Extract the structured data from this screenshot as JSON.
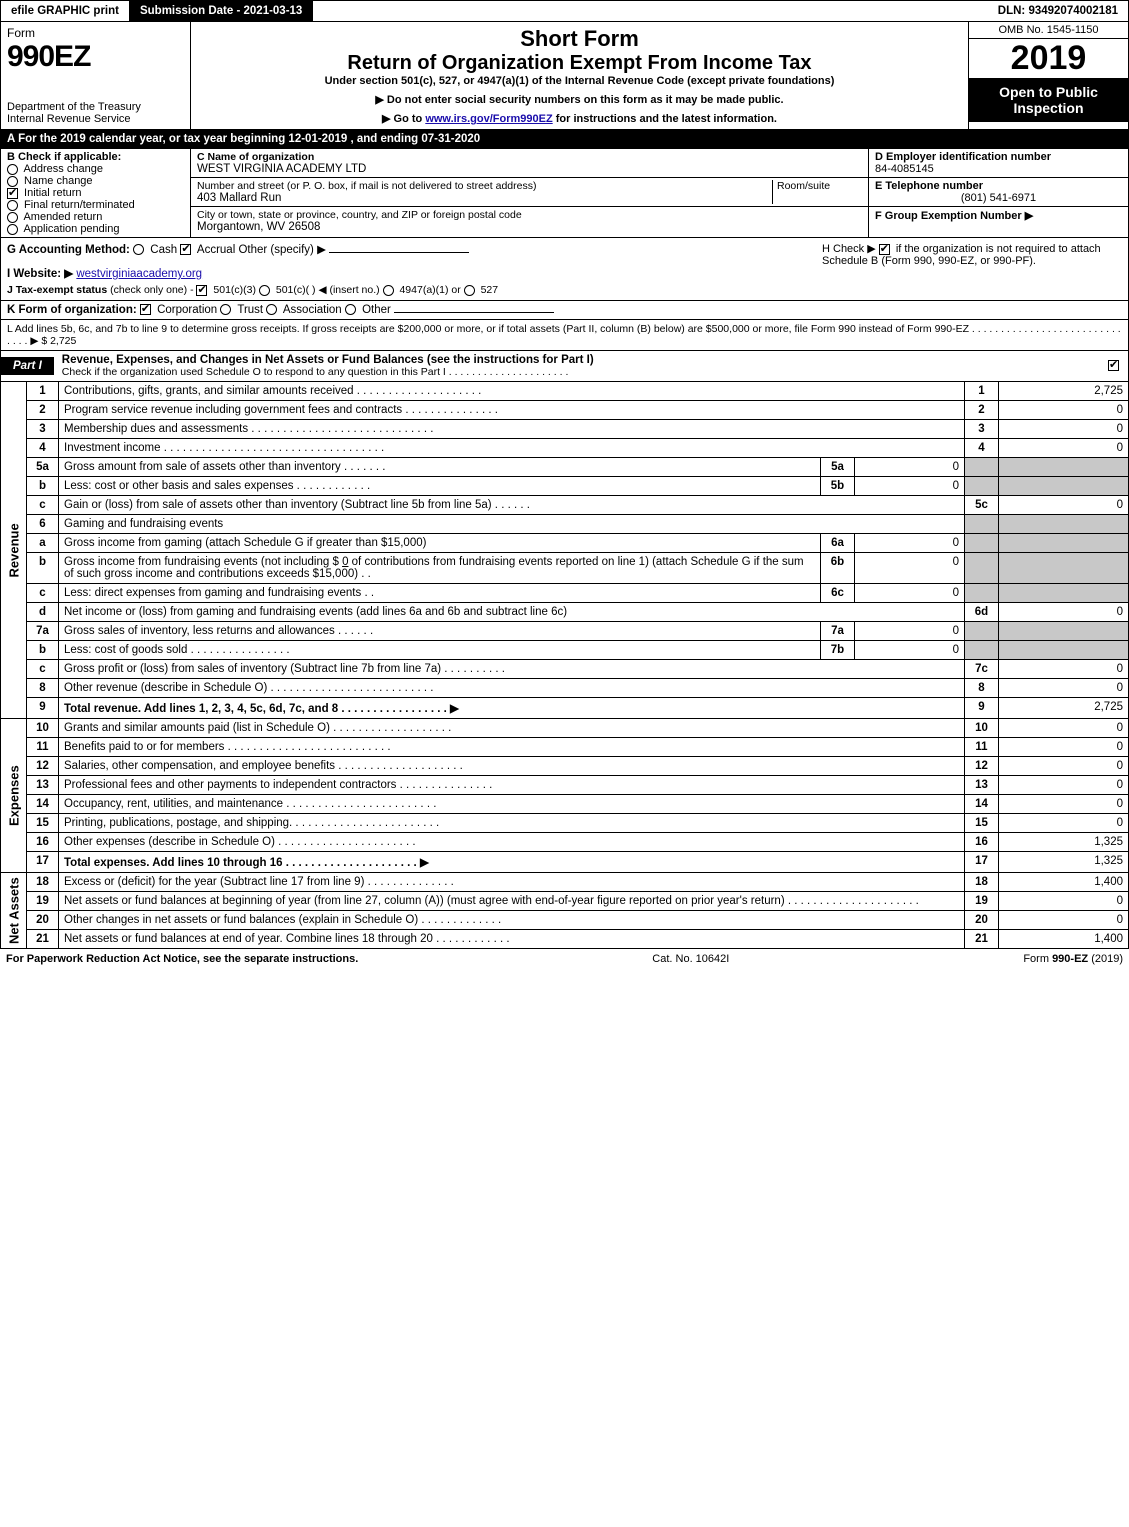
{
  "topbar": {
    "efile": "efile GRAPHIC print",
    "submission": "Submission Date - 2021-03-13",
    "dln": "DLN: 93492074002181"
  },
  "header": {
    "form_label": "Form",
    "form_number": "990EZ",
    "dept1": "Department of the Treasury",
    "dept2": "Internal Revenue Service",
    "short_form": "Short Form",
    "title": "Return of Organization Exempt From Income Tax",
    "subtitle": "Under section 501(c), 527, or 4947(a)(1) of the Internal Revenue Code (except private foundations)",
    "note1": "▶ Do not enter social security numbers on this form as it may be made public.",
    "note2_pre": "▶ Go to ",
    "note2_link": "www.irs.gov/Form990EZ",
    "note2_post": " for instructions and the latest information.",
    "omb": "OMB No. 1545-1150",
    "year": "2019",
    "open": "Open to Public Inspection"
  },
  "line_a": "A  For the 2019 calendar year, or tax year beginning 12-01-2019 , and ending 07-31-2020",
  "block_b": {
    "title": "B  Check if applicable:",
    "items": [
      {
        "label": "Address change",
        "checked": false,
        "round": true
      },
      {
        "label": "Name change",
        "checked": false,
        "round": true
      },
      {
        "label": "Initial return",
        "checked": true,
        "round": false
      },
      {
        "label": "Final return/terminated",
        "checked": false,
        "round": true
      },
      {
        "label": "Amended return",
        "checked": false,
        "round": true
      },
      {
        "label": "Application pending",
        "checked": false,
        "round": true
      }
    ]
  },
  "block_c": {
    "name_label": "C Name of organization",
    "name": "WEST VIRGINIA ACADEMY LTD",
    "street_label": "Number and street (or P. O. box, if mail is not delivered to street address)",
    "room_label": "Room/suite",
    "street": "403 Mallard Run",
    "city_label": "City or town, state or province, country, and ZIP or foreign postal code",
    "city": "Morgantown, WV  26508"
  },
  "block_d": {
    "ein_label": "D Employer identification number",
    "ein": "84-4085145",
    "phone_label": "E Telephone number",
    "phone": "(801) 541-6971",
    "group_label": "F Group Exemption Number   ▶"
  },
  "line_g": {
    "label": "G Accounting Method:",
    "cash": "Cash",
    "accrual": "Accrual",
    "other": "Other (specify) ▶",
    "h_label": "H   Check ▶",
    "h_text": "if the organization is not required to attach Schedule B (Form 990, 990-EZ, or 990-PF).",
    "h_checked": true
  },
  "line_i": {
    "label": "I Website: ▶",
    "value": "westvirginiaacademy.org"
  },
  "line_j": {
    "label": "J Tax-exempt status",
    "note": "(check only one) -",
    "opt1": "501(c)(3)",
    "opt2": "501(c)(   ) ◀ (insert no.)",
    "opt3": "4947(a)(1) or",
    "opt4": "527"
  },
  "line_k": {
    "label": "K Form of organization:",
    "opts": [
      "Corporation",
      "Trust",
      "Association",
      "Other"
    ]
  },
  "line_l": {
    "text": "L Add lines 5b, 6c, and 7b to line 9 to determine gross receipts. If gross receipts are $200,000 or more, or if total assets (Part II, column (B) below) are $500,000 or more, file Form 990 instead of Form 990-EZ . . . . . . . . . . . . . . . . . . . . . . . . . . . . . . ▶ $ 2,725"
  },
  "part1": {
    "tag": "Part I",
    "title": "Revenue, Expenses, and Changes in Net Assets or Fund Balances (see the instructions for Part I)",
    "check_line": "Check if the organization used Schedule O to respond to any question in this Part I . . . . . . . . . . . . . . . . . . . . ."
  },
  "sections": {
    "revenue": "Revenue",
    "expenses": "Expenses",
    "netassets": "Net Assets"
  },
  "rows": {
    "r1": {
      "n": "1",
      "d": "Contributions, gifts, grants, and similar amounts received . . . . . . . . . . . . . . . . . . . .",
      "box": "1",
      "amt": "2,725"
    },
    "r2": {
      "n": "2",
      "d": "Program service revenue including government fees and contracts . . . . . . . . . . . . . . .",
      "box": "2",
      "amt": "0"
    },
    "r3": {
      "n": "3",
      "d": "Membership dues and assessments . . . . . . . . . . . . . . . . . . . . . . . . . . . . .",
      "box": "3",
      "amt": "0"
    },
    "r4": {
      "n": "4",
      "d": "Investment income . . . . . . . . . . . . . . . . . . . . . . . . . . . . . . . . . . .",
      "box": "4",
      "amt": "0"
    },
    "r5a": {
      "n": "5a",
      "d": "Gross amount from sale of assets other than inventory  . . . . . . .",
      "ib": "5a",
      "ia": "0"
    },
    "r5b": {
      "n": "b",
      "d": "Less: cost or other basis and sales expenses . . . . . . . . . . . .",
      "ib": "5b",
      "ia": "0"
    },
    "r5c": {
      "n": "c",
      "d": "Gain or (loss) from sale of assets other than inventory (Subtract line 5b from line 5a)  . . . . . .",
      "box": "5c",
      "amt": "0"
    },
    "r6": {
      "n": "6",
      "d": "Gaming and fundraising events"
    },
    "r6a": {
      "n": "a",
      "d": "Gross income from gaming (attach Schedule G if greater than $15,000)",
      "ib": "6a",
      "ia": "0"
    },
    "r6b": {
      "n": "b",
      "d1": "Gross income from fundraising events (not including $",
      "u": "0",
      "d2": "of contributions from fundraising events reported on line 1) (attach Schedule G if the sum of such gross income and contributions exceeds $15,000)   . .",
      "ib": "6b",
      "ia": "0"
    },
    "r6c": {
      "n": "c",
      "d": "Less: direct expenses from gaming and fundraising events       . .",
      "ib": "6c",
      "ia": "0"
    },
    "r6d": {
      "n": "d",
      "d": "Net income or (loss) from gaming and fundraising events (add lines 6a and 6b and subtract line 6c)",
      "box": "6d",
      "amt": "0"
    },
    "r7a": {
      "n": "7a",
      "d": "Gross sales of inventory, less returns and allowances  . . . . . .",
      "ib": "7a",
      "ia": "0"
    },
    "r7b": {
      "n": "b",
      "d": "Less: cost of goods sold        . . . . . . . . . . . . . . . .",
      "ib": "7b",
      "ia": "0"
    },
    "r7c": {
      "n": "c",
      "d": "Gross profit or (loss) from sales of inventory (Subtract line 7b from line 7a)  . . . . . . . . . .",
      "box": "7c",
      "amt": "0"
    },
    "r8": {
      "n": "8",
      "d": "Other revenue (describe in Schedule O) . . . . . . . . . . . . . . . . . . . . . . . . . .",
      "box": "8",
      "amt": "0"
    },
    "r9": {
      "n": "9",
      "d": "Total revenue. Add lines 1, 2, 3, 4, 5c, 6d, 7c, and 8  . . . . . . . . . . . . . . . . .    ▶",
      "box": "9",
      "amt": "2,725",
      "bold": true
    },
    "r10": {
      "n": "10",
      "d": "Grants and similar amounts paid (list in Schedule O)  . . . . . . . . . . . . . . . . . . .",
      "box": "10",
      "amt": "0"
    },
    "r11": {
      "n": "11",
      "d": "Benefits paid to or for members     . . . . . . . . . . . . . . . . . . . . . . . . . .",
      "box": "11",
      "amt": "0"
    },
    "r12": {
      "n": "12",
      "d": "Salaries, other compensation, and employee benefits . . . . . . . . . . . . . . . . . . . .",
      "box": "12",
      "amt": "0"
    },
    "r13": {
      "n": "13",
      "d": "Professional fees and other payments to independent contractors . . . . . . . . . . . . . . .",
      "box": "13",
      "amt": "0"
    },
    "r14": {
      "n": "14",
      "d": "Occupancy, rent, utilities, and maintenance . . . . . . . . . . . . . . . . . . . . . . . .",
      "box": "14",
      "amt": "0"
    },
    "r15": {
      "n": "15",
      "d": "Printing, publications, postage, and shipping. . . . . . . . . . . . . . . . . . . . . . . .",
      "box": "15",
      "amt": "0"
    },
    "r16": {
      "n": "16",
      "d": "Other expenses (describe in Schedule O)     . . . . . . . . . . . . . . . . . . . . . .",
      "box": "16",
      "amt": "1,325"
    },
    "r17": {
      "n": "17",
      "d": "Total expenses. Add lines 10 through 16    . . . . . . . . . . . . . . . . . . . . .    ▶",
      "box": "17",
      "amt": "1,325",
      "bold": true
    },
    "r18": {
      "n": "18",
      "d": "Excess or (deficit) for the year (Subtract line 17 from line 9)       . . . . . . . . . . . . . .",
      "box": "18",
      "amt": "1,400"
    },
    "r19": {
      "n": "19",
      "d": "Net assets or fund balances at beginning of year (from line 27, column (A)) (must agree with end-of-year figure reported on prior year's return) . . . . . . . . . . . . . . . . . . . . .",
      "box": "19",
      "amt": "0"
    },
    "r20": {
      "n": "20",
      "d": "Other changes in net assets or fund balances (explain in Schedule O) . . . . . . . . . . . . .",
      "box": "20",
      "amt": "0"
    },
    "r21": {
      "n": "21",
      "d": "Net assets or fund balances at end of year. Combine lines 18 through 20 . . . . . . . . . . . .",
      "box": "21",
      "amt": "1,400"
    }
  },
  "footer": {
    "left": "For Paperwork Reduction Act Notice, see the separate instructions.",
    "mid": "Cat. No. 10642I",
    "right_pre": "Form ",
    "right_bold": "990-EZ",
    "right_post": " (2019)"
  },
  "colors": {
    "black": "#000000",
    "grey": "#c8c8c8",
    "link": "#1a0dab"
  }
}
